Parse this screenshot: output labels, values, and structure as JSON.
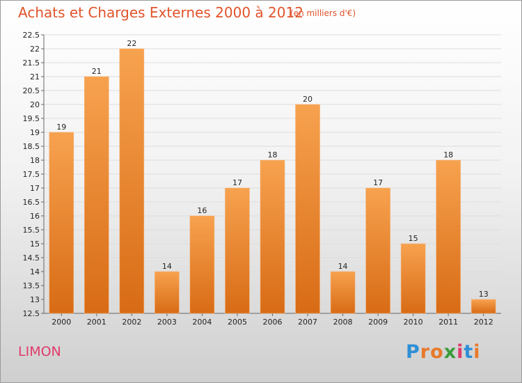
{
  "chart_data": {
    "type": "bar",
    "title": "Achats et Charges Externes 2000 à 2012",
    "subtitle": "(en milliers d'€)",
    "categories": [
      "2000",
      "2001",
      "2002",
      "2003",
      "2004",
      "2005",
      "2006",
      "2007",
      "2008",
      "2009",
      "2010",
      "2011",
      "2012"
    ],
    "values": [
      19,
      21,
      22,
      14,
      16,
      17,
      18,
      20,
      14,
      17,
      15,
      18,
      13
    ],
    "ylim": [
      12.5,
      22.5
    ],
    "yticks": [
      12.5,
      13,
      13.5,
      14,
      14.5,
      15,
      15.5,
      16,
      16.5,
      17,
      17.5,
      18,
      18.5,
      19,
      19.5,
      20,
      20.5,
      21,
      21.5,
      22,
      22.5
    ],
    "grid": true,
    "bar_color": "#f0883a"
  },
  "footer": {
    "commune": "LIMON",
    "logo": "Proxiti"
  }
}
